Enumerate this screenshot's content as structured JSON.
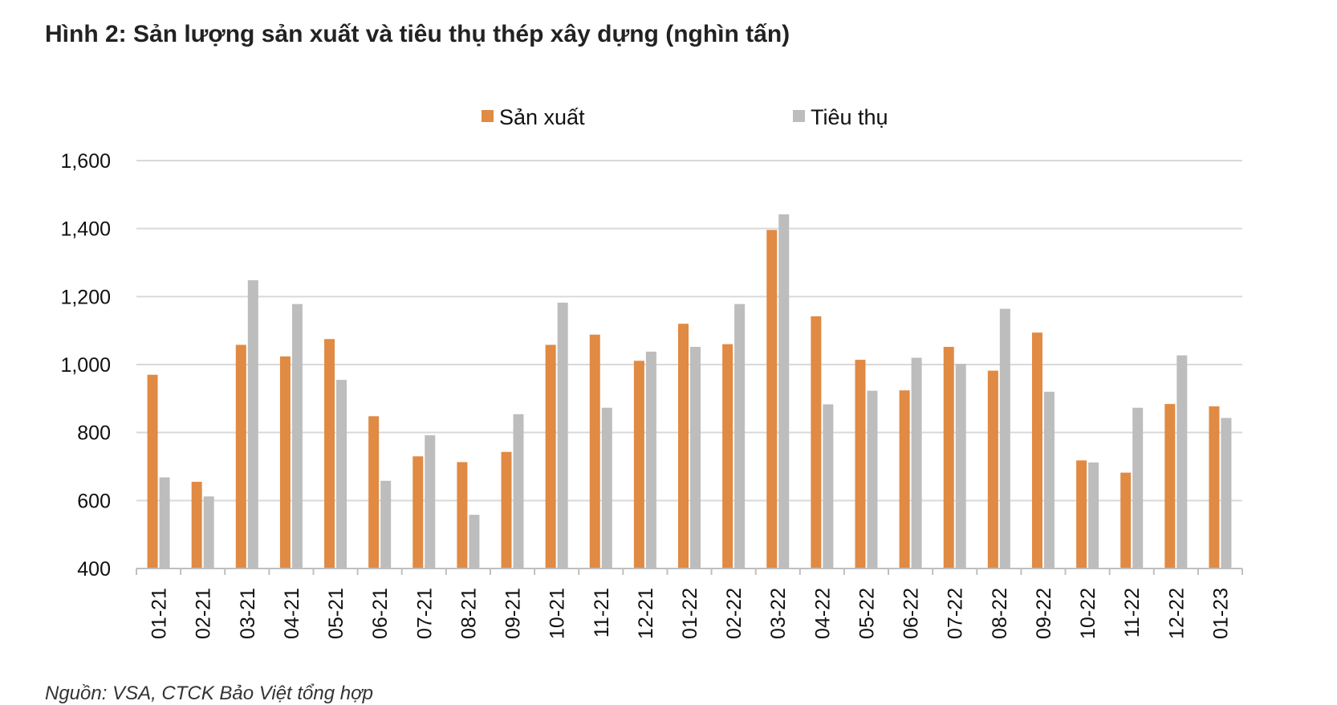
{
  "title": "Hình 2: Sản lượng sản xuất và tiêu thụ thép xây dựng (nghìn tấn)",
  "source": "Nguồn: VSA, CTCK Bảo Việt tổng hợp",
  "colors": {
    "san_xuat": "#E08A43",
    "tieu_thu": "#BDBDBD",
    "grid": "#D9D9D9",
    "axis": "#BFBFBF"
  },
  "chart_data": {
    "type": "bar",
    "title": "Hình 2: Sản lượng sản xuất và tiêu thụ thép xây dựng (nghìn tấn)",
    "xlabel": "",
    "ylabel": "",
    "ylim": [
      400,
      1600
    ],
    "yticks": [
      400,
      600,
      800,
      1000,
      1200,
      1400,
      1600
    ],
    "ytick_labels": [
      "400",
      "600",
      "800",
      "1,000",
      "1,200",
      "1,400",
      "1,600"
    ],
    "grid": true,
    "legend_position": "top-center",
    "categories": [
      "01-21",
      "02-21",
      "03-21",
      "04-21",
      "05-21",
      "06-21",
      "07-21",
      "08-21",
      "09-21",
      "10-21",
      "11-21",
      "12-21",
      "01-22",
      "02-22",
      "03-22",
      "04-22",
      "05-22",
      "06-22",
      "07-22",
      "08-22",
      "09-22",
      "10-22",
      "11-22",
      "12-22",
      "01-23"
    ],
    "series": [
      {
        "name": "Sản xuất",
        "values": [
          970,
          655,
          1058,
          1024,
          1075,
          848,
          730,
          713,
          743,
          1058,
          1088,
          1011,
          1120,
          1060,
          1396,
          1142,
          1014,
          924,
          1052,
          982,
          1094,
          718,
          682,
          884,
          877
        ]
      },
      {
        "name": "Tiêu thụ",
        "values": [
          668,
          612,
          1248,
          1178,
          955,
          658,
          792,
          558,
          854,
          1182,
          873,
          1038,
          1052,
          1178,
          1442,
          883,
          923,
          1020,
          1002,
          1164,
          920,
          712,
          873,
          1027,
          843
        ]
      }
    ]
  }
}
